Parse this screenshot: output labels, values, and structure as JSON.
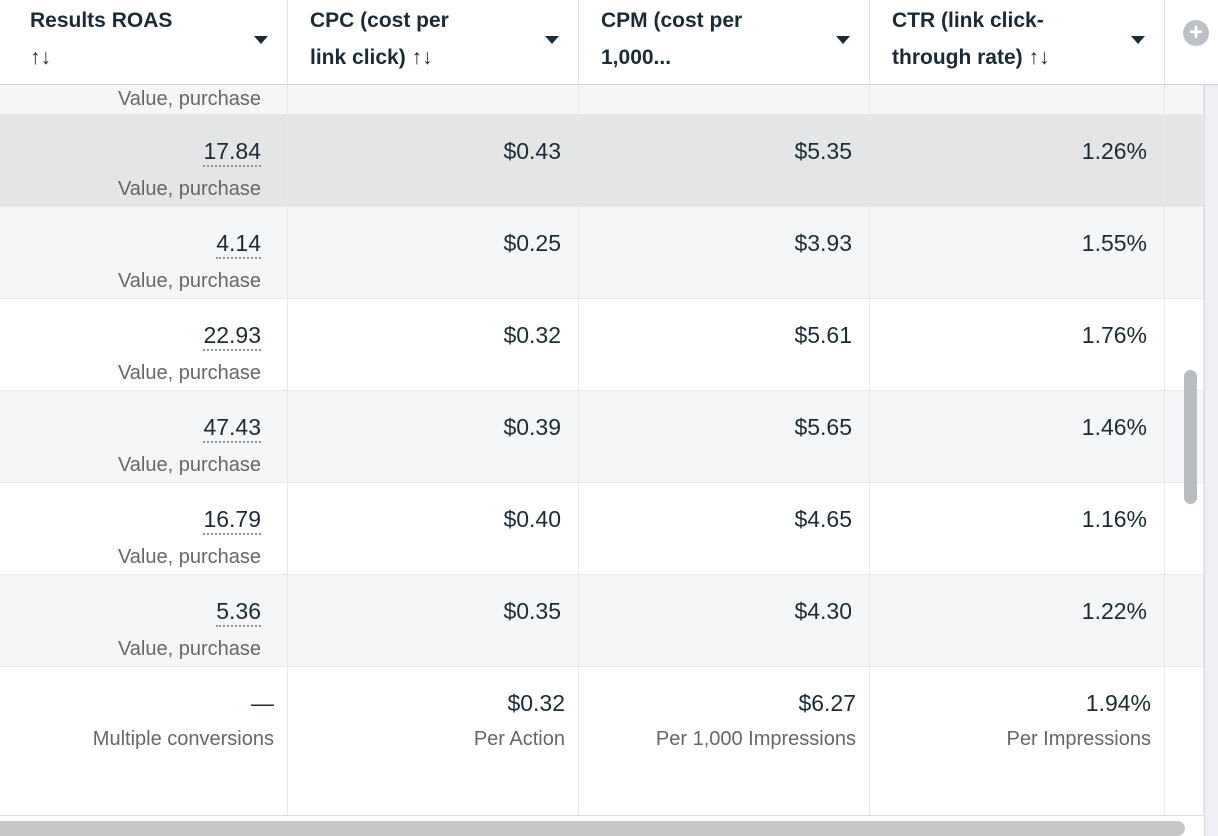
{
  "app": "ads-metrics-table",
  "colors": {
    "text_primary": "#1c2b33",
    "text_secondary": "#65676b",
    "row_alt_bg": "#f5f6f7",
    "row_hover_bg": "#e4e5e6",
    "column_border": "#e5e7ea",
    "header_border": "#cfd3d6",
    "gutter_bg": "#edeff2",
    "scrollbar_thumb": "#b9bcc0",
    "h_scrollbar_thumb": "#c6c7c8",
    "add_button_bg": "#bdc1c6"
  },
  "table": {
    "columns": [
      {
        "id": "results_roas",
        "lines": [
          "Results ROAS",
          "↑↓"
        ]
      },
      {
        "id": "cpc",
        "lines": [
          "CPC (cost per",
          "link click) ↑↓"
        ]
      },
      {
        "id": "cpm",
        "lines": [
          "CPM (cost per",
          "1,000..."
        ]
      },
      {
        "id": "ctr",
        "lines": [
          "CTR (link click-",
          "through rate) ↑↓"
        ]
      }
    ],
    "add_column_icon": "+",
    "partial_row": {
      "sub": "Value, purchase"
    },
    "rows": [
      {
        "roas": "17.84",
        "sub": "Value, purchase",
        "cpc": "$0.43",
        "cpm": "$5.35",
        "ctr": "1.26%",
        "state": "hovered"
      },
      {
        "roas": "4.14",
        "sub": "Value, purchase",
        "cpc": "$0.25",
        "cpm": "$3.93",
        "ctr": "1.55%",
        "state": "alt"
      },
      {
        "roas": "22.93",
        "sub": "Value, purchase",
        "cpc": "$0.32",
        "cpm": "$5.61",
        "ctr": "1.76%",
        "state": ""
      },
      {
        "roas": "47.43",
        "sub": "Value, purchase",
        "cpc": "$0.39",
        "cpm": "$5.65",
        "ctr": "1.46%",
        "state": "alt"
      },
      {
        "roas": "16.79",
        "sub": "Value, purchase",
        "cpc": "$0.40",
        "cpm": "$4.65",
        "ctr": "1.16%",
        "state": ""
      },
      {
        "roas": "5.36",
        "sub": "Value, purchase",
        "cpc": "$0.35",
        "cpm": "$4.30",
        "ctr": "1.22%",
        "state": "alt"
      }
    ],
    "summary_row": {
      "roas": "—",
      "roas_sub": "Multiple conversions",
      "cpc": "$0.32",
      "cpc_sub": "Per Action",
      "cpm": "$6.27",
      "cpm_sub": "Per 1,000 Impressions",
      "ctr": "1.94%",
      "ctr_sub": "Per Impressions"
    }
  }
}
